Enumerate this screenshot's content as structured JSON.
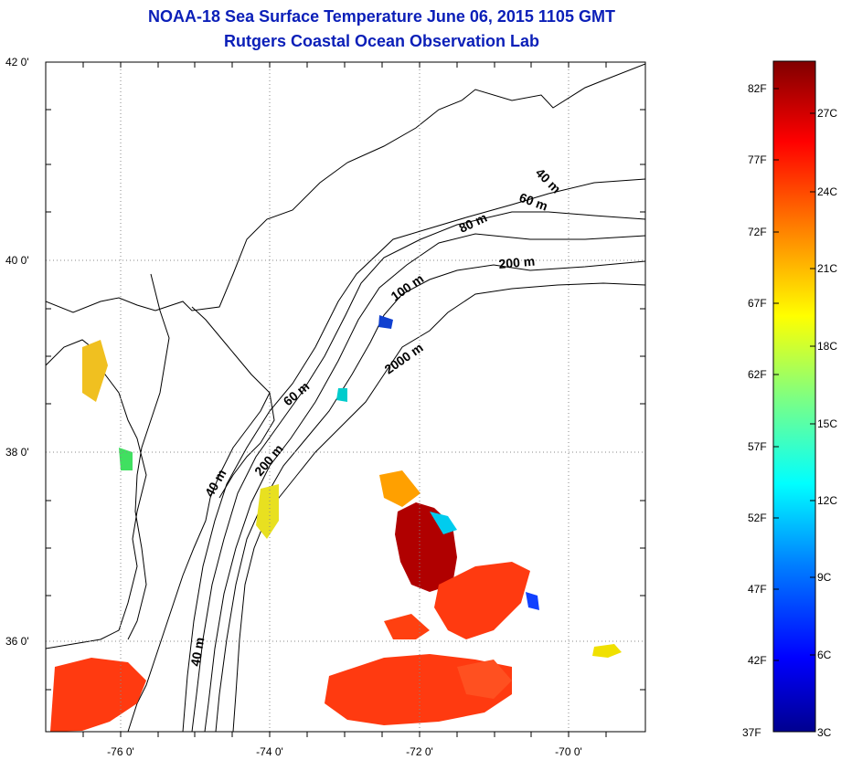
{
  "header": {
    "title": "NOAA-18 Sea Surface Temperature June 06, 2015 1105 GMT",
    "subtitle": "Rutgers Coastal Ocean Observation Lab"
  },
  "map": {
    "lat_labels": [
      "42 0'",
      "40 0'",
      "38 0'",
      "36 0'"
    ],
    "lon_labels": [
      "-76 0'",
      "-74 0'",
      "-72 0'",
      "-70 0'"
    ],
    "lat_range": [
      35,
      42
    ],
    "lon_range": [
      -77,
      -69
    ],
    "grid": "dotted",
    "isobath_labels": [
      "40 m",
      "60 m",
      "80 m",
      "200 m",
      "100 m",
      "2000 m",
      "60 m",
      "200 m",
      "40 m",
      "40 m"
    ]
  },
  "colorbar": {
    "fahrenheit_labels": [
      "82F",
      "77F",
      "72F",
      "67F",
      "62F",
      "57F",
      "52F",
      "47F",
      "42F",
      "37F"
    ],
    "celsius_labels": [
      "27C",
      "24C",
      "21C",
      "18C",
      "15C",
      "12C",
      "9C",
      "6C",
      "3C"
    ],
    "colormap": "jet",
    "colors": [
      "#00008f",
      "#0000ff",
      "#0080ff",
      "#00ffff",
      "#80ff80",
      "#ffff00",
      "#ff8000",
      "#ff0000",
      "#800000"
    ]
  }
}
